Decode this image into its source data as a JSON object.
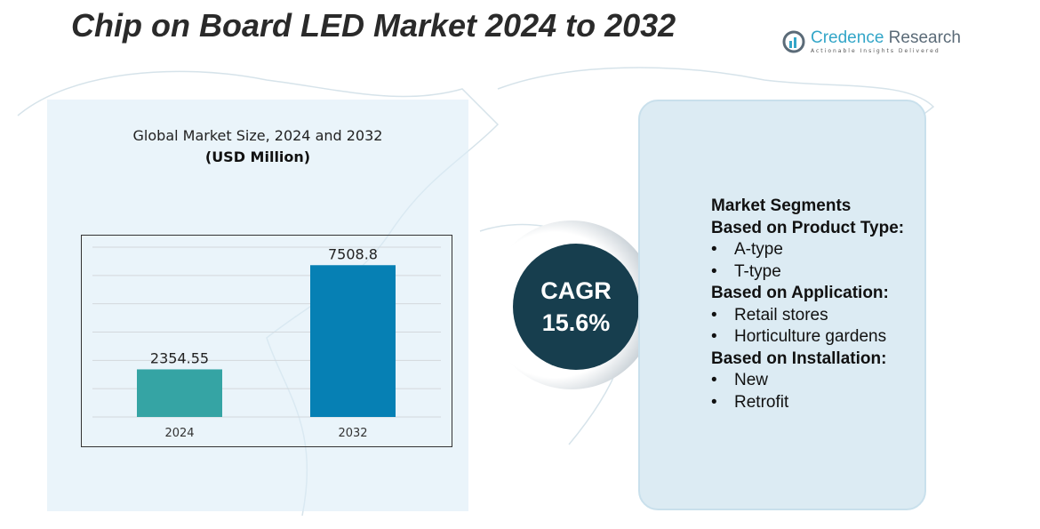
{
  "title": "Chip on Board LED Market 2024 to 2032",
  "logo": {
    "name_a": "Credence",
    "name_b": " Research",
    "tagline": "Actionable Insights Delivered"
  },
  "subtitle": "Global Market Size, 2024 and 2032",
  "unit": "(USD Million)",
  "chart_data": {
    "type": "bar",
    "categories": [
      "2024",
      "2032"
    ],
    "values": [
      2354.55,
      7508.8
    ],
    "value_labels": [
      "2354.55",
      "7508.8"
    ],
    "colors": [
      "#35a4a4",
      "#0680b4"
    ],
    "ylim": [
      0,
      8400
    ],
    "grid": true,
    "title": "Global Market Size, 2024 and 2032",
    "ylabel": "(USD Million)"
  },
  "cagr": {
    "label": "CAGR",
    "value": "15.6%"
  },
  "segments": {
    "heading": "Market Segments",
    "groups": [
      {
        "title": "Based on Product Type:",
        "items": [
          "A-type",
          "T-type"
        ]
      },
      {
        "title": "Based on Application:",
        "items": [
          "Retail stores",
          "Horticulture gardens"
        ]
      },
      {
        "title": "Based on Installation:",
        "items": [
          "New",
          "Retrofit"
        ]
      }
    ]
  }
}
